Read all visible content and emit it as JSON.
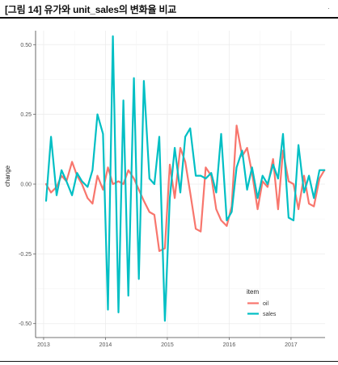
{
  "caption": "[그림 14] 유가와 unit_sales의 변화율 비교",
  "corner_mark": "·",
  "colors": {
    "oil": "#f8766d",
    "sales": "#00bfc4",
    "panel": "#ffffff",
    "grid": "#ececec"
  },
  "chart_data": {
    "type": "line",
    "title": "",
    "xlabel": "",
    "ylabel": "change",
    "x_ticks": [
      "2013",
      "2014",
      "2015",
      "2016",
      "2017"
    ],
    "y_ticks": [
      "0.50",
      "0.25",
      "0.00",
      "-0.25",
      "-0.50"
    ],
    "ylim": [
      -0.55,
      0.55
    ],
    "xlim": [
      2012.87,
      2017.55
    ],
    "grid": true,
    "legend": {
      "title": "item",
      "placement": "bottom-right"
    },
    "x": [
      2013.04,
      2013.12,
      2013.21,
      2013.29,
      2013.37,
      2013.46,
      2013.54,
      2013.62,
      2013.71,
      2013.79,
      2013.87,
      2013.96,
      2014.04,
      2014.12,
      2014.21,
      2014.29,
      2014.37,
      2014.46,
      2014.54,
      2014.62,
      2014.71,
      2014.79,
      2014.87,
      2014.96,
      2015.04,
      2015.12,
      2015.21,
      2015.29,
      2015.37,
      2015.46,
      2015.54,
      2015.62,
      2015.71,
      2015.79,
      2015.87,
      2015.96,
      2016.04,
      2016.12,
      2016.21,
      2016.29,
      2016.37,
      2016.46,
      2016.54,
      2016.62,
      2016.71,
      2016.79,
      2016.87,
      2016.96,
      2017.04,
      2017.12,
      2017.21,
      2017.29,
      2017.37,
      2017.46,
      2017.54
    ],
    "series": [
      {
        "name": "oil",
        "color": "#f8766d",
        "values": [
          0.0,
          -0.03,
          -0.01,
          0.03,
          0.01,
          0.08,
          0.03,
          0.0,
          -0.05,
          -0.07,
          0.03,
          -0.02,
          0.06,
          0.0,
          0.01,
          0.0,
          0.05,
          0.02,
          -0.02,
          -0.06,
          -0.1,
          -0.11,
          -0.24,
          -0.23,
          0.07,
          -0.05,
          0.13,
          0.08,
          -0.03,
          -0.16,
          -0.17,
          0.06,
          0.03,
          -0.09,
          -0.13,
          -0.15,
          -0.08,
          0.21,
          0.1,
          0.13,
          0.04,
          -0.09,
          0.01,
          -0.01,
          0.09,
          -0.09,
          0.12,
          0.01,
          0.0,
          -0.09,
          0.03,
          -0.07,
          -0.08,
          0.02,
          0.05
        ]
      },
      {
        "name": "sales",
        "color": "#00bfc4",
        "values": [
          -0.06,
          0.17,
          -0.04,
          0.05,
          0.01,
          -0.04,
          0.04,
          0.01,
          -0.01,
          0.05,
          0.25,
          0.18,
          -0.45,
          0.53,
          -0.46,
          0.3,
          -0.4,
          0.38,
          -0.34,
          0.37,
          0.02,
          0.0,
          0.17,
          -0.49,
          -0.05,
          0.13,
          -0.03,
          0.17,
          0.2,
          0.03,
          0.03,
          0.02,
          0.04,
          -0.03,
          0.18,
          -0.13,
          -0.1,
          0.06,
          0.12,
          -0.02,
          0.06,
          -0.05,
          0.03,
          0.0,
          0.07,
          0.02,
          0.18,
          -0.12,
          -0.13,
          0.14,
          -0.03,
          0.03,
          -0.05,
          0.05,
          0.05
        ]
      }
    ]
  }
}
